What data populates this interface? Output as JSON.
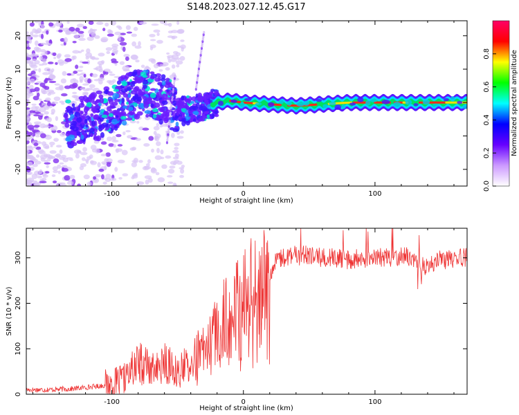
{
  "title": "S148.2023.027.12.45.G17",
  "chart_data": [
    {
      "type": "heatmap",
      "xlabel": "Height of straight line (km)",
      "ylabel": "Frequency (Hz)",
      "xlim": [
        -165,
        170
      ],
      "ylim": [
        -25,
        24.5
      ],
      "x_ticks": [
        -100,
        0,
        100
      ],
      "y_ticks": [
        -20,
        -10,
        0,
        10,
        20
      ],
      "grid": false,
      "ridge": {
        "x": [
          -130,
          -120,
          -110,
          -100,
          -90,
          -80,
          -70,
          -60,
          -50,
          -40,
          -30,
          -20,
          -10,
          0,
          20,
          40,
          60,
          80,
          100,
          120,
          140,
          160,
          168
        ],
        "y": [
          -6,
          -5,
          -4,
          -2,
          1,
          3,
          2,
          1,
          -3,
          -2,
          -1,
          0,
          0.5,
          0,
          -0.5,
          -1,
          -0.5,
          0,
          0,
          0,
          0,
          0,
          0
        ]
      },
      "colorbar": {
        "label": "Normalized spectral amplitude",
        "ticks": [
          0.0,
          0.2,
          0.4,
          0.6,
          0.8
        ],
        "range": [
          0,
          1
        ],
        "colors": [
          "#ffffff",
          "#cc99ff",
          "#6600ff",
          "#0000ff",
          "#00ffff",
          "#00ff00",
          "#ffff00",
          "#ff0000",
          "#ff0066"
        ]
      }
    },
    {
      "type": "line",
      "xlabel": "Height of straight line (km)",
      "ylabel": "SNR (10 * v/v)",
      "xlim": [
        -165,
        170
      ],
      "ylim": [
        0,
        365
      ],
      "x_ticks": [
        -100,
        0,
        100
      ],
      "y_ticks": [
        0,
        100,
        200,
        300
      ],
      "line_color": "#ee3333",
      "grid": false,
      "series": [
        {
          "x": [
            -165,
            -150,
            -140,
            -130,
            -120,
            -110,
            -100,
            -95,
            -90,
            -85,
            -80,
            -75,
            -70,
            -65,
            -60,
            -55,
            -50,
            -45,
            -40,
            -35,
            -30,
            -25,
            -20,
            -15,
            -10,
            -5,
            0,
            5,
            10,
            15,
            20,
            25,
            30,
            40,
            50,
            60,
            70,
            80,
            90,
            100,
            110,
            120,
            130,
            135,
            140,
            150,
            160,
            170
          ],
          "y": [
            10,
            10,
            11,
            12,
            15,
            18,
            22,
            26,
            35,
            55,
            70,
            65,
            55,
            55,
            70,
            60,
            50,
            60,
            80,
            85,
            95,
            110,
            140,
            160,
            180,
            190,
            200,
            215,
            220,
            235,
            270,
            290,
            300,
            305,
            305,
            300,
            300,
            295,
            300,
            300,
            300,
            305,
            300,
            290,
            280,
            295,
            300,
            300
          ]
        }
      ]
    }
  ]
}
